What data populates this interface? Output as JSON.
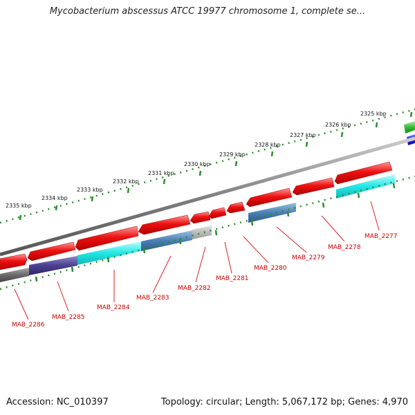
{
  "header": {
    "title": "Mycobacterium abscessus ATCC 19977 chromosome 1, complete se..."
  },
  "footer": {
    "accession": "Accession: NC_010397",
    "summary": "Topology: circular; Length: 5,067,172 bp; Genes: 4,970"
  },
  "scale_labels": [
    "2325 kbp",
    "2326 kbp",
    "2327 kbp",
    "2328 kbp",
    "2329 kbp",
    "2330 kbp",
    "2331 kbp",
    "2332 kbp",
    "2333 kbp",
    "2334 kbp",
    "2335 kbp"
  ],
  "gene_labels": [
    "MAB_2277",
    "MAB_2278",
    "MAB_2279",
    "MAB_2280",
    "MAB_2281",
    "MAB_2282",
    "MAB_2283",
    "MAB_2284",
    "MAB_2285",
    "MAB_2286"
  ],
  "colors": {
    "cds": "#ee1111",
    "label": "#cc0000",
    "tick": "#2e8b2e",
    "backbone": "#808080",
    "cyan": "#22e6e6",
    "steel": "#4a7fb5",
    "grey": "#bbbbbb",
    "purple": "#4b3f8f",
    "dark": "#6a6a6a",
    "green": "#33bb33",
    "blue": "#1a1aee"
  }
}
